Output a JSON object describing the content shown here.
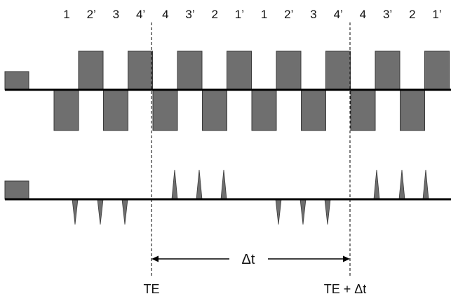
{
  "echo_labels": [
    "1",
    "2’",
    "3",
    "4’",
    "4",
    "3’",
    "2",
    "1’",
    "1",
    "2’",
    "3",
    "4’",
    "4",
    "3’",
    "2",
    "1’"
  ],
  "timing": {
    "te_label": "TE",
    "te_dt_label": "TE + Δt",
    "dt_label": "Δt"
  },
  "colors": {
    "pulse_fill": "#6f6f6f",
    "pulse_stroke": "#3a3a3a",
    "baseline": "#000000"
  }
}
